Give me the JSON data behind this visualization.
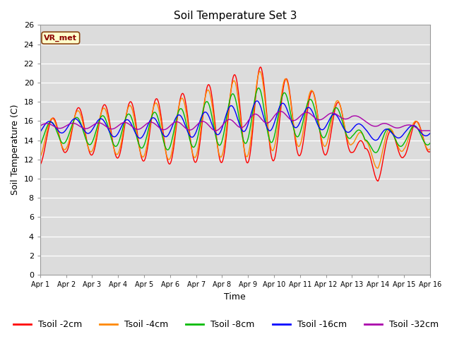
{
  "title": "Soil Temperature Set 3",
  "xlabel": "Time",
  "ylabel": "Soil Temperature (C)",
  "ylim": [
    0,
    26
  ],
  "yticks": [
    0,
    2,
    4,
    6,
    8,
    10,
    12,
    14,
    16,
    18,
    20,
    22,
    24,
    26
  ],
  "xtick_labels": [
    "Apr 1",
    "Apr 2",
    "Apr 3",
    "Apr 4",
    "Apr 5",
    "Apr 6",
    "Apr 7",
    "Apr 8",
    "Apr 9",
    "Apr 10",
    "Apr 11",
    "Apr 12",
    "Apr 13",
    "Apr 14",
    "Apr 15",
    "Apr 16"
  ],
  "legend_labels": [
    "Tsoil -2cm",
    "Tsoil -4cm",
    "Tsoil -8cm",
    "Tsoil -16cm",
    "Tsoil -32cm"
  ],
  "line_colors": [
    "#ff0000",
    "#ff8800",
    "#00bb00",
    "#0000ff",
    "#aa00aa"
  ],
  "annotation_text": "VR_met",
  "plot_bg_color": "#dcdcdc",
  "grid_color": "#ffffff",
  "title_fontsize": 11,
  "axis_fontsize": 9,
  "tick_fontsize": 8,
  "legend_fontsize": 9,
  "n_points": 721
}
